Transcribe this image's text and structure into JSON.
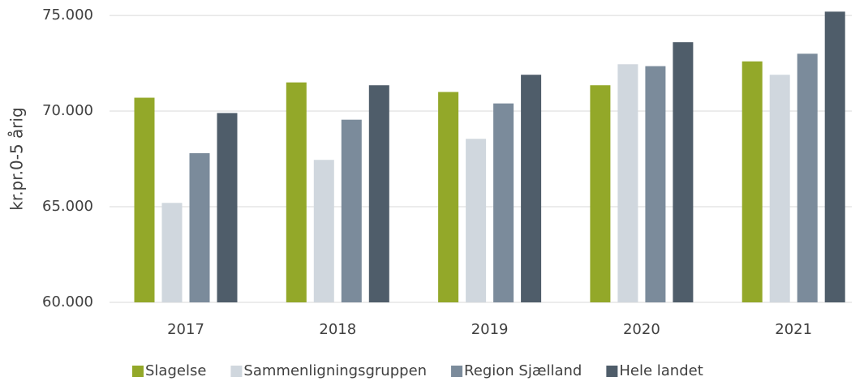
{
  "chart_data": {
    "type": "bar",
    "y_label": "kr.pr.0-5 årig",
    "categories": [
      "2017",
      "2018",
      "2019",
      "2020",
      "2021"
    ],
    "series": [
      {
        "name": "Slagelse",
        "color": "#93a829",
        "values": [
          70700,
          71500,
          71000,
          71350,
          72600
        ]
      },
      {
        "name": "Sammenligningsgruppen",
        "color": "#d0d7de",
        "values": [
          65200,
          67450,
          68550,
          72450,
          71900
        ]
      },
      {
        "name": "Region Sjælland",
        "color": "#7b8b9b",
        "values": [
          67800,
          69550,
          70400,
          72350,
          73000
        ]
      },
      {
        "name": "Hele landet",
        "color": "#4f5d6a",
        "values": [
          69900,
          71350,
          71900,
          73600,
          75200
        ]
      }
    ],
    "ylim": [
      60000,
      75300
    ],
    "yticks": [
      {
        "value": 60000,
        "label": "60.000"
      },
      {
        "value": 65000,
        "label": "65.000"
      },
      {
        "value": 70000,
        "label": "70.000"
      },
      {
        "value": 75000,
        "label": "75.000"
      }
    ],
    "grid": true,
    "legend": "bottom"
  }
}
